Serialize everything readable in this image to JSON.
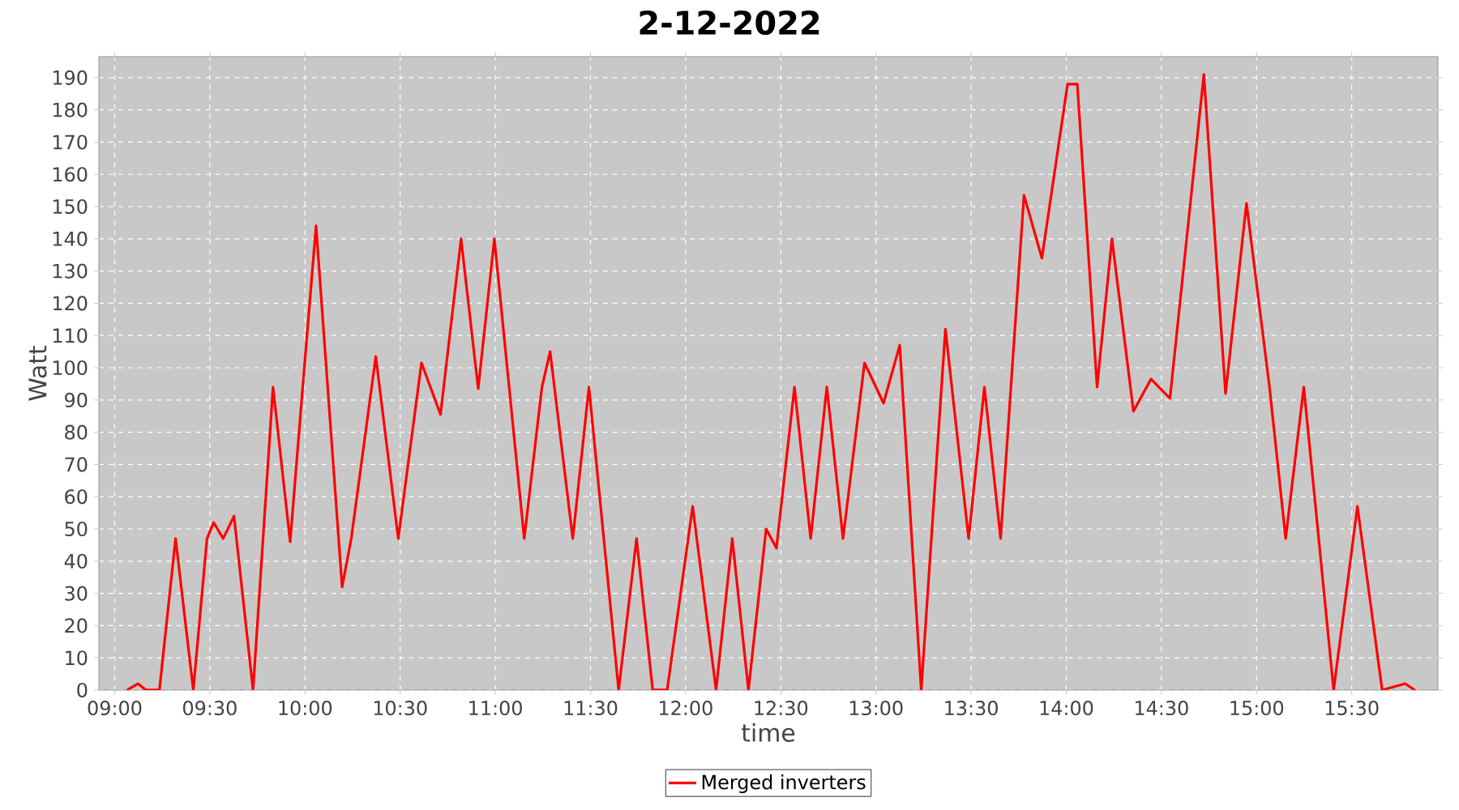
{
  "chart_data": {
    "type": "line",
    "title": "2-12-2022",
    "xlabel": "time",
    "ylabel": "Watt",
    "x": [
      9.065,
      9.122,
      9.165,
      9.235,
      9.32,
      9.413,
      9.485,
      9.52,
      9.57,
      9.627,
      9.727,
      9.832,
      9.922,
      9.988,
      10.058,
      10.195,
      10.243,
      10.372,
      10.49,
      10.612,
      10.712,
      10.82,
      10.91,
      10.995,
      11.152,
      11.245,
      11.288,
      11.407,
      11.492,
      11.648,
      11.742,
      11.827,
      11.903,
      12.037,
      12.16,
      12.245,
      12.33,
      12.423,
      12.477,
      12.572,
      12.657,
      12.742,
      12.827,
      12.94,
      13.04,
      13.125,
      13.238,
      13.365,
      13.487,
      13.57,
      13.655,
      13.778,
      13.872,
      14.007,
      14.058,
      14.162,
      14.24,
      14.353,
      14.445,
      14.545,
      14.723,
      14.837,
      14.947,
      15.068,
      15.153,
      15.248,
      15.405,
      15.53,
      15.66,
      15.78,
      15.832
    ],
    "series": [
      {
        "name": "Merged inverters",
        "color": "#ff0000",
        "values": [
          0,
          2,
          0,
          0,
          47,
          0,
          47,
          52,
          47,
          54,
          0,
          94,
          46,
          94,
          144,
          32,
          47,
          103.5,
          47,
          101.5,
          85.5,
          140,
          93.5,
          140,
          47,
          94,
          105,
          47,
          94,
          0,
          47,
          0,
          0,
          57,
          0,
          47,
          0,
          50,
          44,
          94,
          47,
          94,
          47,
          101.5,
          89,
          107,
          0,
          112,
          47,
          94,
          47,
          153.5,
          134,
          188,
          188,
          94,
          140,
          86.5,
          96.5,
          90.5,
          191,
          92,
          151,
          94,
          47,
          94,
          0,
          57,
          0,
          2,
          0
        ]
      }
    ],
    "xlim": [
      8.917,
      15.953
    ],
    "ylim": [
      0,
      196.5
    ],
    "xticks": [
      {
        "value": 9,
        "label": "09:00"
      },
      {
        "value": 9.5,
        "label": "09:30"
      },
      {
        "value": 10,
        "label": "10:00"
      },
      {
        "value": 10.5,
        "label": "10:30"
      },
      {
        "value": 11,
        "label": "11:00"
      },
      {
        "value": 11.5,
        "label": "11:30"
      },
      {
        "value": 12,
        "label": "12:00"
      },
      {
        "value": 12.5,
        "label": "12:30"
      },
      {
        "value": 13,
        "label": "13:00"
      },
      {
        "value": 13.5,
        "label": "13:30"
      },
      {
        "value": 14,
        "label": "14:00"
      },
      {
        "value": 14.5,
        "label": "14:30"
      },
      {
        "value": 15,
        "label": "15:00"
      },
      {
        "value": 15.5,
        "label": "15:30"
      }
    ],
    "yticks": [
      0,
      10,
      20,
      30,
      40,
      50,
      60,
      70,
      80,
      90,
      100,
      110,
      120,
      130,
      140,
      150,
      160,
      170,
      180,
      190
    ],
    "grid": true,
    "legend": "bottom",
    "marker": "none",
    "line_style": "solid"
  }
}
